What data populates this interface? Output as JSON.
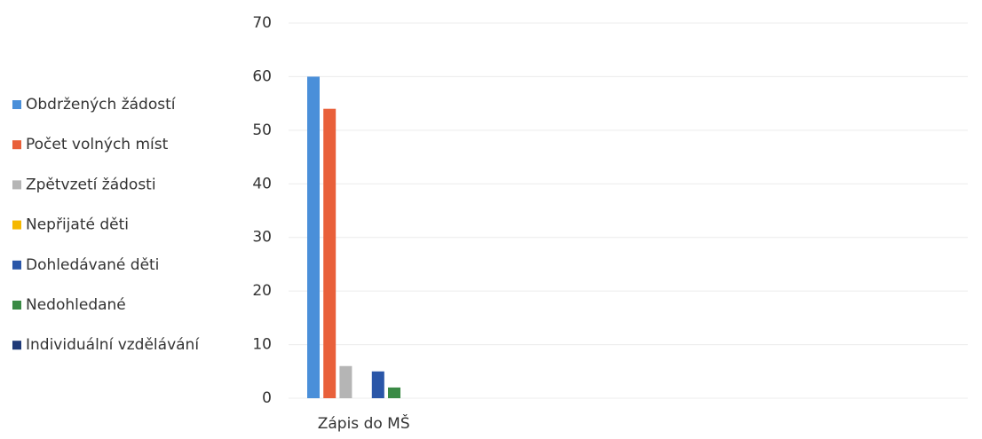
{
  "chart_data": {
    "type": "bar",
    "categories": [
      "Zápis do MŠ"
    ],
    "series": [
      {
        "name": "Obdržených žádostí",
        "color": "#4a8fd9",
        "values": [
          60
        ]
      },
      {
        "name": "Počet volných míst",
        "color": "#e9603a",
        "values": [
          54
        ]
      },
      {
        "name": "Zpětvzetí žádosti",
        "color": "#b5b5b5",
        "values": [
          6
        ]
      },
      {
        "name": "Nepřijaté děti",
        "color": "#f5b800",
        "values": [
          0
        ]
      },
      {
        "name": "Dohledávané děti",
        "color": "#2a56a8",
        "values": [
          5
        ]
      },
      {
        "name": "Nedohledané",
        "color": "#3a8a45",
        "values": [
          2
        ]
      },
      {
        "name": "Individuální vzdělávání",
        "color": "#1f3a78",
        "values": [
          0
        ]
      }
    ],
    "ylim": [
      0,
      70
    ],
    "yticks": [
      0,
      10,
      20,
      30,
      40,
      50,
      60,
      70
    ],
    "grid": true,
    "legend": "left"
  }
}
